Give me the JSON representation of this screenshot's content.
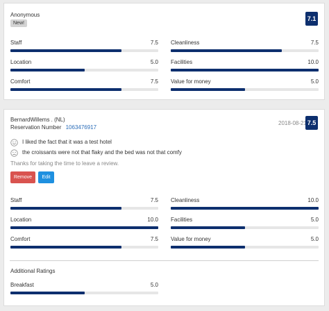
{
  "reviews": [
    {
      "author": "Anonymous",
      "badge": "New!",
      "score": "7.1",
      "ratings": [
        {
          "label": "Staff",
          "value": "7.5",
          "fraction": 0.75
        },
        {
          "label": "Cleanliness",
          "value": "7.5",
          "fraction": 0.75
        },
        {
          "label": "Location",
          "value": "5.0",
          "fraction": 0.5
        },
        {
          "label": "Facilities",
          "value": "10.0",
          "fraction": 1.0
        },
        {
          "label": "Comfort",
          "value": "7.5",
          "fraction": 0.75
        },
        {
          "label": "Value for money",
          "value": "5.0",
          "fraction": 0.5
        }
      ]
    },
    {
      "author": "BernardWillems . (NL)",
      "reservation_label": "Reservation Number",
      "reservation_number": "1063476917",
      "date": "2018-08-21",
      "score": "7.5",
      "positive_text": "I liked the fact that it was a test hotel",
      "negative_text": "the croissants were not that flaky and the bed was not that comfy",
      "reply_text": "Thanks for taking the time to leave a review.",
      "remove_label": "Remove",
      "edit_label": "Edit",
      "ratings": [
        {
          "label": "Staff",
          "value": "7.5",
          "fraction": 0.75
        },
        {
          "label": "Cleanliness",
          "value": "10.0",
          "fraction": 1.0
        },
        {
          "label": "Location",
          "value": "10.0",
          "fraction": 1.0
        },
        {
          "label": "Facilities",
          "value": "5.0",
          "fraction": 0.5
        },
        {
          "label": "Comfort",
          "value": "7.5",
          "fraction": 0.75
        },
        {
          "label": "Value for money",
          "value": "5.0",
          "fraction": 0.5
        }
      ],
      "additional_title": "Additional Ratings",
      "additional": [
        {
          "label": "Breakfast",
          "value": "5.0",
          "fraction": 0.5
        }
      ]
    }
  ],
  "icons": {
    "positive": "happy-face-icon",
    "negative": "sad-face-icon"
  },
  "colors": {
    "bar_fill": "#0d2f6e",
    "score_badge": "#0d2f6e",
    "remove_button": "#d9534f",
    "edit_button": "#1e90e0",
    "link": "#2a6cb8"
  }
}
